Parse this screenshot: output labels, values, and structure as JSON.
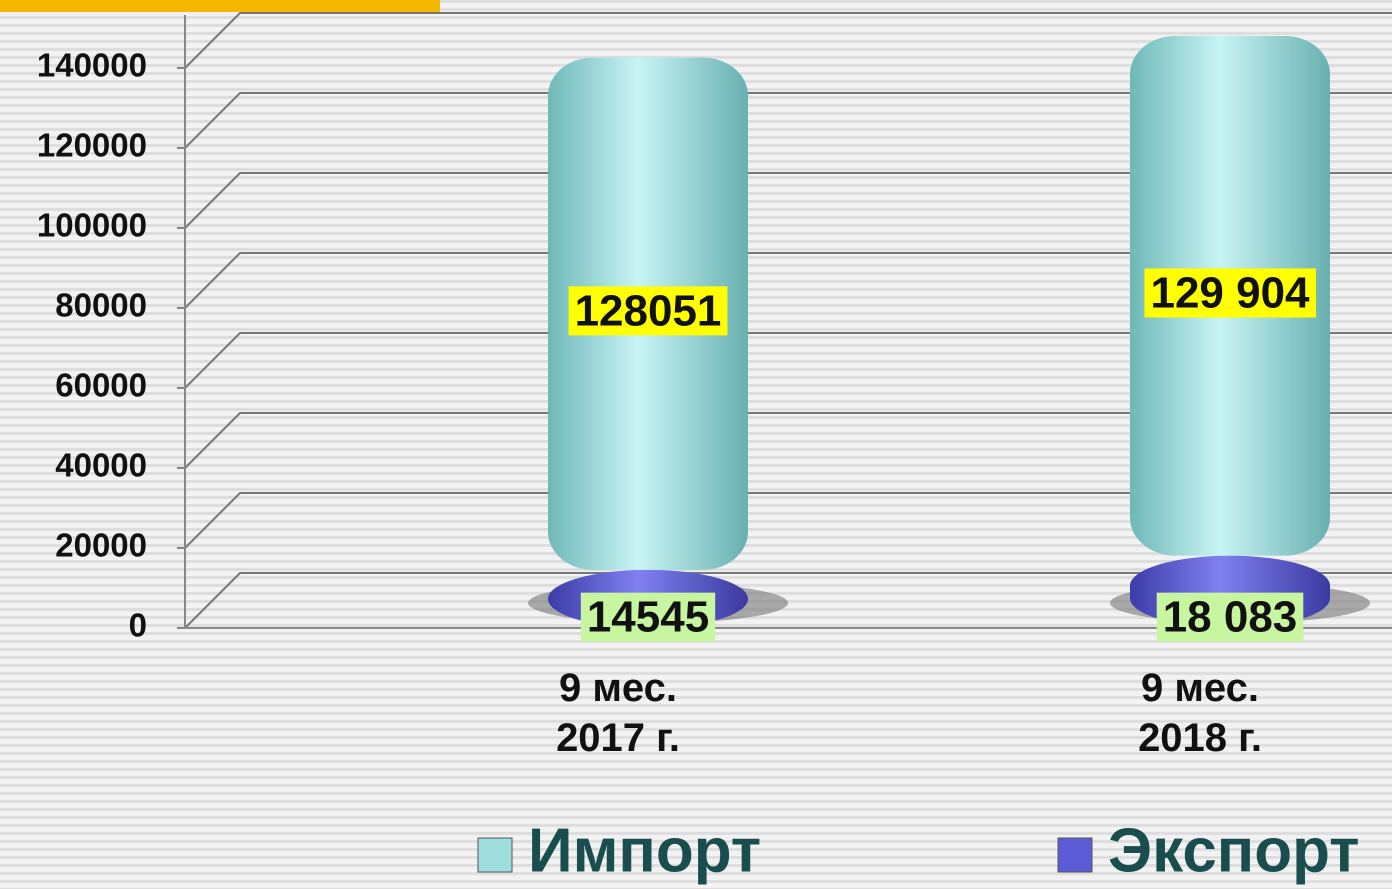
{
  "chart_data": {
    "type": "stacked_bar",
    "categories": [
      "9 мес.\n2017 г.",
      "9 мес.\n2018 г."
    ],
    "series": [
      {
        "name": "Экспорт",
        "color": "#5b5bd6",
        "values": [
          14545,
          18083
        ],
        "value_labels": [
          "14545",
          "18 083"
        ]
      },
      {
        "name": "Импорт",
        "color": "#9fdede",
        "values": [
          128051,
          129904
        ],
        "value_labels": [
          "128051",
          "129 904"
        ]
      }
    ],
    "ylim": [
      0,
      140000
    ],
    "yticks": [
      0,
      20000,
      40000,
      60000,
      80000,
      100000,
      120000,
      140000
    ],
    "grid": true
  }
}
